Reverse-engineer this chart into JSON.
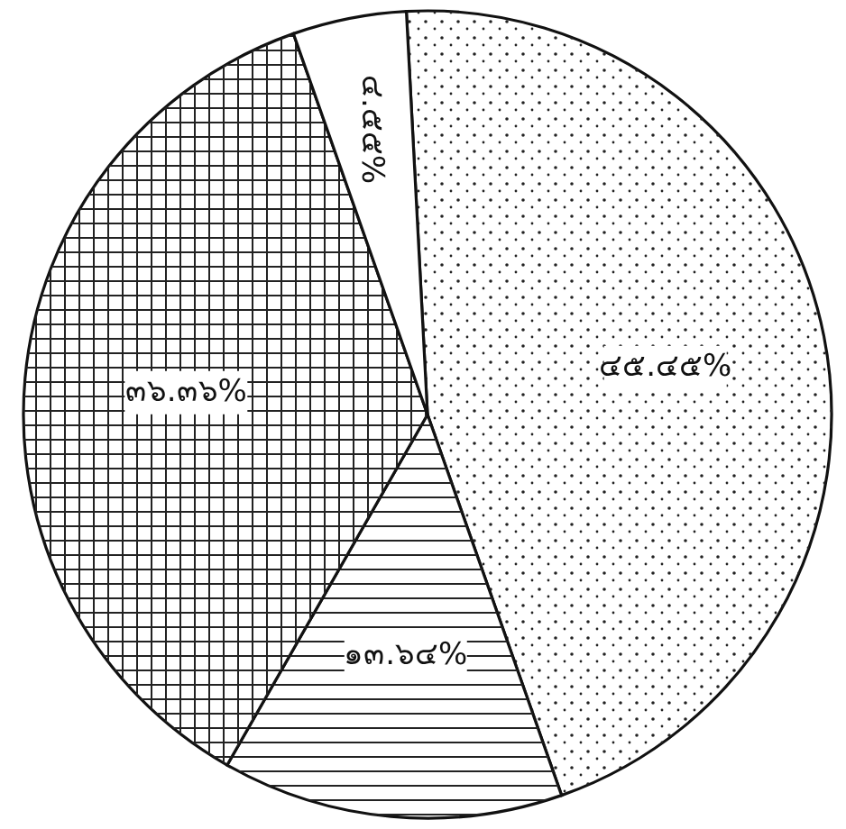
{
  "chart_data": {
    "type": "pie",
    "categories": [
      null,
      null,
      null,
      null
    ],
    "values": [
      45.45,
      13.64,
      36.36,
      4.55
    ],
    "colors": [
      "#ffffff",
      "#ffffff",
      "#ffffff",
      "#ffffff"
    ],
    "value_labels": [
      "๔๕.๔๕%",
      "๑๓.๖๔%",
      "๓๖.๓๖%",
      "๔.๕๕%"
    ]
  }
}
